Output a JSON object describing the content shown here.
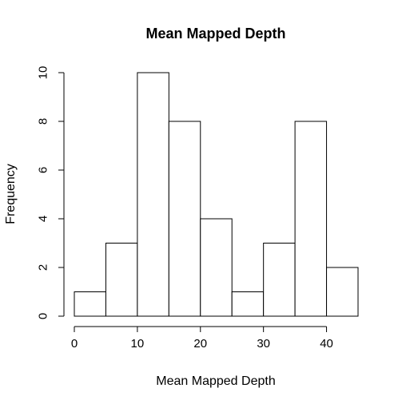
{
  "chart_data": {
    "type": "bar",
    "title": "Mean Mapped Depth",
    "xlabel": "Mean Mapped Depth",
    "ylabel": "Frequency",
    "bins": [
      {
        "start": 0,
        "end": 5,
        "count": 1
      },
      {
        "start": 5,
        "end": 10,
        "count": 3
      },
      {
        "start": 10,
        "end": 15,
        "count": 10
      },
      {
        "start": 15,
        "end": 20,
        "count": 8
      },
      {
        "start": 20,
        "end": 25,
        "count": 4
      },
      {
        "start": 25,
        "end": 30,
        "count": 1
      },
      {
        "start": 30,
        "end": 35,
        "count": 3
      },
      {
        "start": 35,
        "end": 40,
        "count": 8
      },
      {
        "start": 40,
        "end": 45,
        "count": 2
      }
    ],
    "x_ticks": [
      0,
      10,
      20,
      30,
      40
    ],
    "y_ticks": [
      0,
      2,
      4,
      6,
      8,
      10
    ],
    "xlim": [
      0,
      45
    ],
    "ylim": [
      0,
      10
    ],
    "grid": false,
    "legend": "none",
    "colors": {
      "bar_fill": "#ffffff",
      "bar_stroke": "#000000"
    }
  }
}
